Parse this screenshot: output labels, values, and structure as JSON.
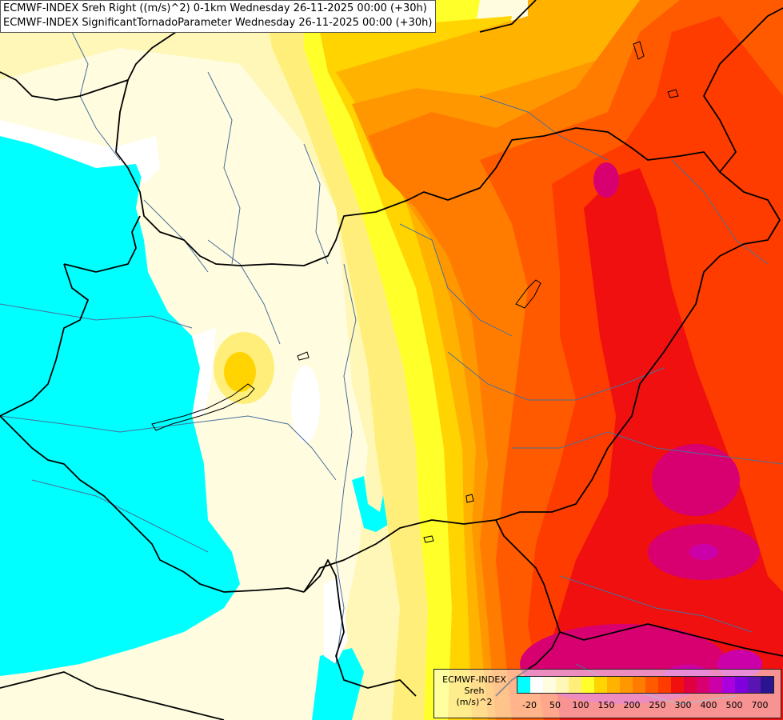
{
  "header": {
    "line1": "ECMWF-INDEX Sreh Right ((m/s)^2) 0-1km Wednesday 26-11-2025 00:00 (+30h)",
    "line2": "ECMWF-INDEX SignificantTornadoParameter Wednesday 26-11-2025 00:00 (+30h)"
  },
  "legend": {
    "title1": "ECMWF-INDEX",
    "title2": "Sreh",
    "title3": "(m/s)^2",
    "tick_labels": [
      "-20",
      "50",
      "100",
      "150",
      "200",
      "250",
      "300",
      "400",
      "500",
      "700"
    ],
    "colors": [
      "#00ffff",
      "#ffffff",
      "#fffce0",
      "#fff7b8",
      "#ffef7a",
      "#ffff2a",
      "#ffd400",
      "#ffb300",
      "#ff9700",
      "#ff7c00",
      "#ff5a00",
      "#ff3c00",
      "#f01010",
      "#e00040",
      "#d80070",
      "#cc00a8",
      "#aa00dd",
      "#8000dd",
      "#5a14b4",
      "#2a1490"
    ]
  },
  "map": {
    "field": "Sreh 0-1km",
    "palette": {
      "cyan": "#00ffff",
      "white": "#ffffff",
      "cream": "#fffce0",
      "pale_yellow": "#fff7b8",
      "light_yellow": "#ffef7a",
      "yellow": "#ffff2a",
      "gold": "#ffd400",
      "orange_light": "#ffb300",
      "orange": "#ff9700",
      "orange_deep": "#ff7c00",
      "red_orange": "#ff5a00",
      "red": "#ff3c00",
      "crimson": "#f01010",
      "magenta": "#d80070",
      "purple": "#cc00a8",
      "border": "#000000",
      "river": "#4a6f9a"
    }
  }
}
